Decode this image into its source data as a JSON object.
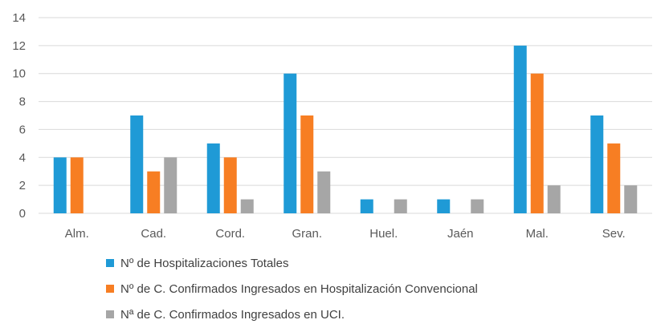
{
  "chart_data": {
    "type": "bar",
    "categories": [
      "Alm.",
      "Cad.",
      "Cord.",
      "Gran.",
      "Huel.",
      "Jaén",
      "Mal.",
      "Sev."
    ],
    "series": [
      {
        "name": "Nº de Hospitalizaciones Totales",
        "color": "#1f9ad6",
        "values": [
          4,
          7,
          5,
          10,
          1,
          1,
          12,
          7
        ]
      },
      {
        "name": "Nº de C. Confirmados Ingresados en Hospitalización Convencional",
        "color": "#f77e23",
        "values": [
          4,
          3,
          4,
          7,
          0,
          0,
          10,
          5
        ]
      },
      {
        "name": "Nª de C. Confirmados Ingresados en UCI.",
        "color": "#a6a6a6",
        "values": [
          0,
          4,
          1,
          3,
          1,
          1,
          2,
          2
        ]
      }
    ],
    "yticks": [
      0,
      2,
      4,
      6,
      8,
      10,
      12,
      14
    ],
    "ylim": [
      0,
      14
    ],
    "grid": true,
    "legend_position": "bottom"
  }
}
